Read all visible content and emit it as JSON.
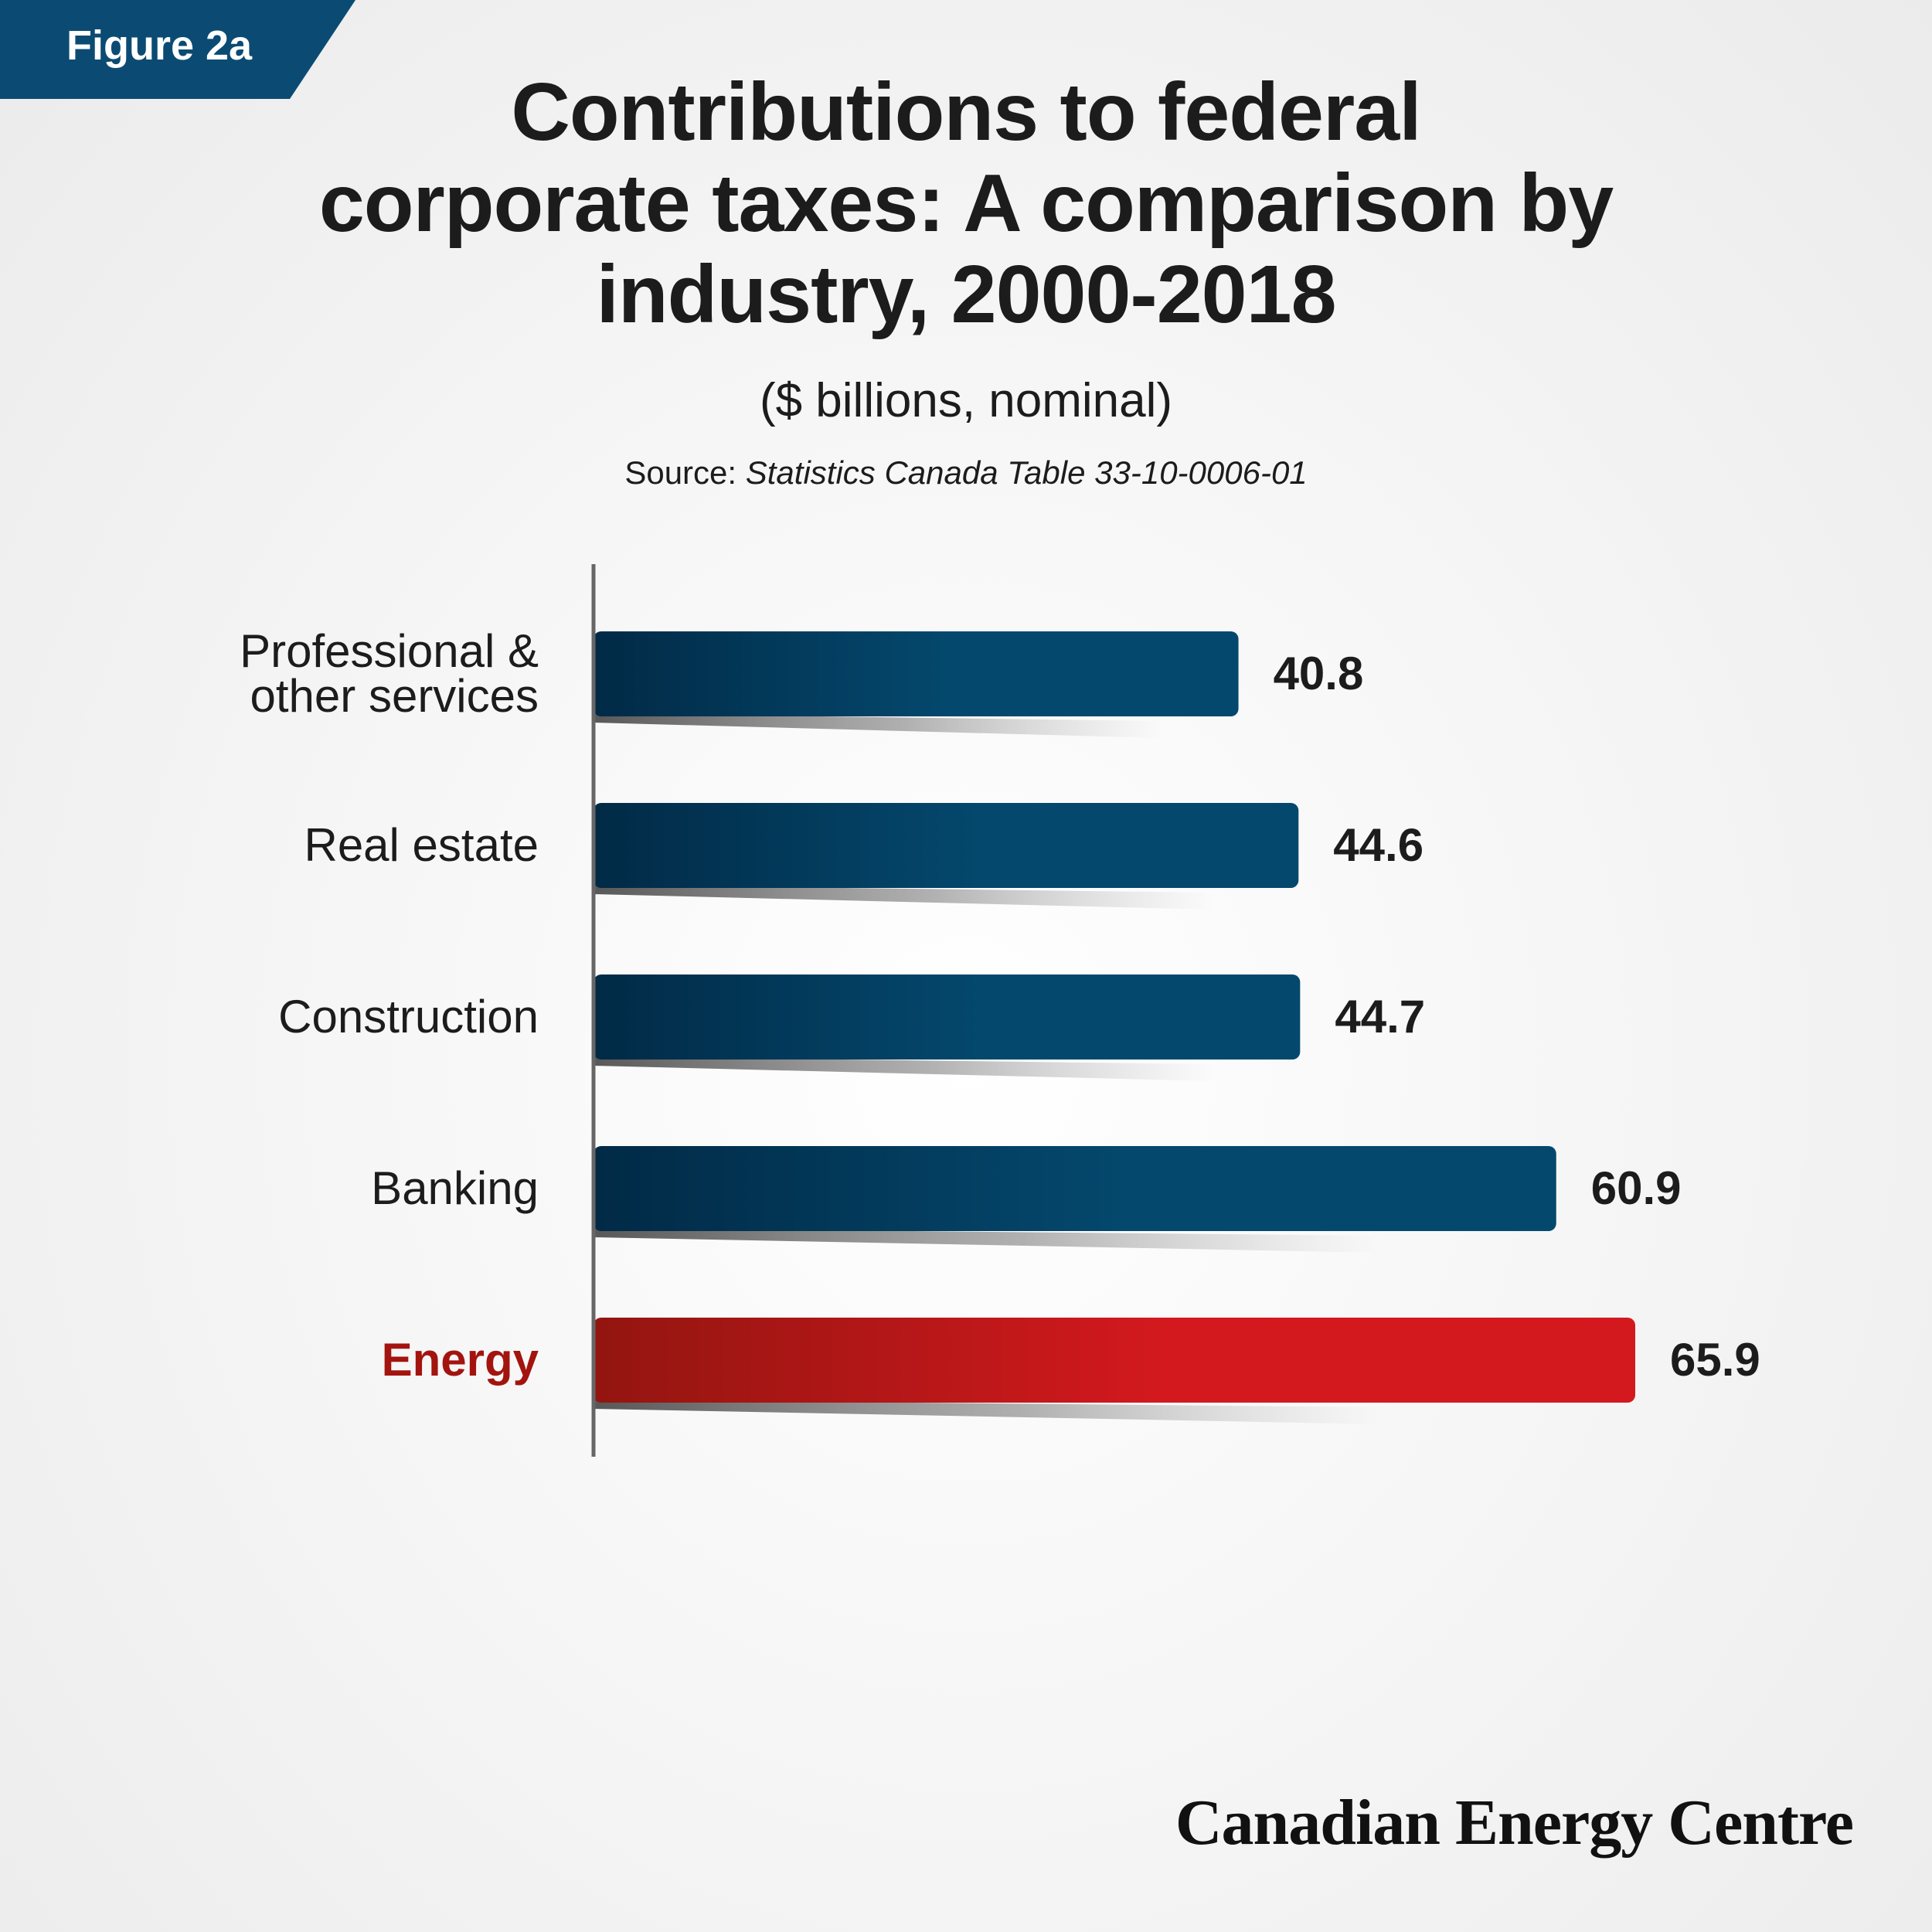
{
  "figure_label": "Figure 2a",
  "title_lines": [
    "Contributions to federal",
    "corporate taxes: A comparison by",
    "industry, 2000-2018"
  ],
  "subtitle": "($ billions, nominal)",
  "source_prefix": "Source: ",
  "source_title": "Statistics Canada Table 33-10-0006-01",
  "brand": "Canadian Energy Centre",
  "colors": {
    "label_tag": "#0b4b73",
    "bar_dark": "#012a46",
    "bar_light": "#04486d",
    "highlight_dark": "#931510",
    "highlight_light": "#d3191e",
    "highlight_label": "#a3140f"
  },
  "chart_data": {
    "type": "bar",
    "orientation": "horizontal",
    "categories": [
      [
        "Professional &",
        "other services"
      ],
      [
        "Real estate"
      ],
      [
        "Construction"
      ],
      [
        "Banking"
      ],
      [
        "Energy"
      ]
    ],
    "values": [
      40.8,
      44.6,
      44.7,
      60.9,
      65.9
    ],
    "value_labels": [
      "40.8",
      "44.6",
      "44.7",
      "60.9",
      "65.9"
    ],
    "highlight": "Energy",
    "xlim": [
      0,
      70
    ],
    "grid": false
  }
}
